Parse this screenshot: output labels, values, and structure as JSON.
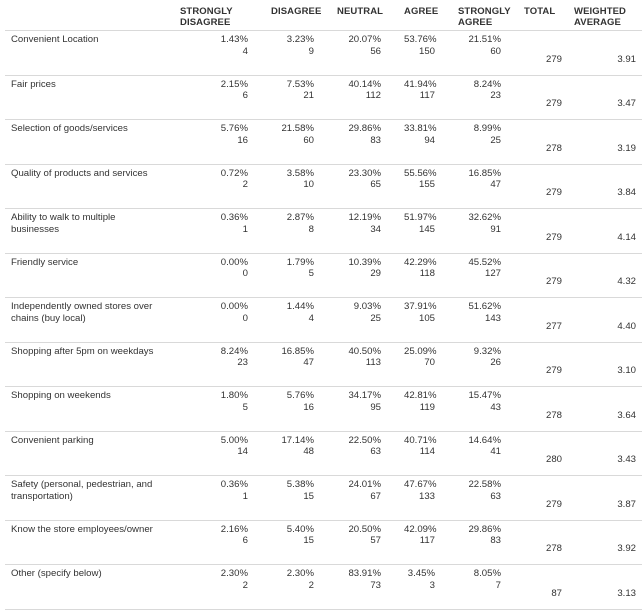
{
  "columns": [
    "",
    "STRONGLY DISAGREE",
    "DISAGREE",
    "NEUTRAL",
    "AGREE",
    "STRONGLY AGREE",
    "TOTAL",
    "WEIGHTED AVERAGE"
  ],
  "rows": [
    {
      "label": "Convenient Location",
      "cells": [
        {
          "pct": "1.43%",
          "count": "4"
        },
        {
          "pct": "3.23%",
          "count": "9"
        },
        {
          "pct": "20.07%",
          "count": "56"
        },
        {
          "pct": "53.76%",
          "count": "150"
        },
        {
          "pct": "21.51%",
          "count": "60"
        }
      ],
      "total": "279",
      "avg": "3.91"
    },
    {
      "label": "Fair prices",
      "cells": [
        {
          "pct": "2.15%",
          "count": "6"
        },
        {
          "pct": "7.53%",
          "count": "21"
        },
        {
          "pct": "40.14%",
          "count": "112"
        },
        {
          "pct": "41.94%",
          "count": "117"
        },
        {
          "pct": "8.24%",
          "count": "23"
        }
      ],
      "total": "279",
      "avg": "3.47"
    },
    {
      "label": "Selection of goods/services",
      "cells": [
        {
          "pct": "5.76%",
          "count": "16"
        },
        {
          "pct": "21.58%",
          "count": "60"
        },
        {
          "pct": "29.86%",
          "count": "83"
        },
        {
          "pct": "33.81%",
          "count": "94"
        },
        {
          "pct": "8.99%",
          "count": "25"
        }
      ],
      "total": "278",
      "avg": "3.19"
    },
    {
      "label": "Quality of products and services",
      "cells": [
        {
          "pct": "0.72%",
          "count": "2"
        },
        {
          "pct": "3.58%",
          "count": "10"
        },
        {
          "pct": "23.30%",
          "count": "65"
        },
        {
          "pct": "55.56%",
          "count": "155"
        },
        {
          "pct": "16.85%",
          "count": "47"
        }
      ],
      "total": "279",
      "avg": "3.84"
    },
    {
      "label": "Ability to walk to multiple businesses",
      "cells": [
        {
          "pct": "0.36%",
          "count": "1"
        },
        {
          "pct": "2.87%",
          "count": "8"
        },
        {
          "pct": "12.19%",
          "count": "34"
        },
        {
          "pct": "51.97%",
          "count": "145"
        },
        {
          "pct": "32.62%",
          "count": "91"
        }
      ],
      "total": "279",
      "avg": "4.14"
    },
    {
      "label": "Friendly service",
      "cells": [
        {
          "pct": "0.00%",
          "count": "0"
        },
        {
          "pct": "1.79%",
          "count": "5"
        },
        {
          "pct": "10.39%",
          "count": "29"
        },
        {
          "pct": "42.29%",
          "count": "118"
        },
        {
          "pct": "45.52%",
          "count": "127"
        }
      ],
      "total": "279",
      "avg": "4.32"
    },
    {
      "label": "Independently owned stores over chains (buy local)",
      "cells": [
        {
          "pct": "0.00%",
          "count": "0"
        },
        {
          "pct": "1.44%",
          "count": "4"
        },
        {
          "pct": "9.03%",
          "count": "25"
        },
        {
          "pct": "37.91%",
          "count": "105"
        },
        {
          "pct": "51.62%",
          "count": "143"
        }
      ],
      "total": "277",
      "avg": "4.40"
    },
    {
      "label": "Shopping after 5pm on weekdays",
      "cells": [
        {
          "pct": "8.24%",
          "count": "23"
        },
        {
          "pct": "16.85%",
          "count": "47"
        },
        {
          "pct": "40.50%",
          "count": "113"
        },
        {
          "pct": "25.09%",
          "count": "70"
        },
        {
          "pct": "9.32%",
          "count": "26"
        }
      ],
      "total": "279",
      "avg": "3.10"
    },
    {
      "label": "Shopping on weekends",
      "cells": [
        {
          "pct": "1.80%",
          "count": "5"
        },
        {
          "pct": "5.76%",
          "count": "16"
        },
        {
          "pct": "34.17%",
          "count": "95"
        },
        {
          "pct": "42.81%",
          "count": "119"
        },
        {
          "pct": "15.47%",
          "count": "43"
        }
      ],
      "total": "278",
      "avg": "3.64"
    },
    {
      "label": "Convenient parking",
      "cells": [
        {
          "pct": "5.00%",
          "count": "14"
        },
        {
          "pct": "17.14%",
          "count": "48"
        },
        {
          "pct": "22.50%",
          "count": "63"
        },
        {
          "pct": "40.71%",
          "count": "114"
        },
        {
          "pct": "14.64%",
          "count": "41"
        }
      ],
      "total": "280",
      "avg": "3.43"
    },
    {
      "label": "Safety (personal, pedestrian, and transportation)",
      "cells": [
        {
          "pct": "0.36%",
          "count": "1"
        },
        {
          "pct": "5.38%",
          "count": "15"
        },
        {
          "pct": "24.01%",
          "count": "67"
        },
        {
          "pct": "47.67%",
          "count": "133"
        },
        {
          "pct": "22.58%",
          "count": "63"
        }
      ],
      "total": "279",
      "avg": "3.87"
    },
    {
      "label": "Know the store employees/owner",
      "cells": [
        {
          "pct": "2.16%",
          "count": "6"
        },
        {
          "pct": "5.40%",
          "count": "15"
        },
        {
          "pct": "20.50%",
          "count": "57"
        },
        {
          "pct": "42.09%",
          "count": "117"
        },
        {
          "pct": "29.86%",
          "count": "83"
        }
      ],
      "total": "278",
      "avg": "3.92"
    },
    {
      "label": "Other (specify below)",
      "cells": [
        {
          "pct": "2.30%",
          "count": "2"
        },
        {
          "pct": "2.30%",
          "count": "2"
        },
        {
          "pct": "83.91%",
          "count": "73"
        },
        {
          "pct": "3.45%",
          "count": "3"
        },
        {
          "pct": "8.05%",
          "count": "7"
        }
      ],
      "total": "87",
      "avg": "3.13"
    }
  ]
}
